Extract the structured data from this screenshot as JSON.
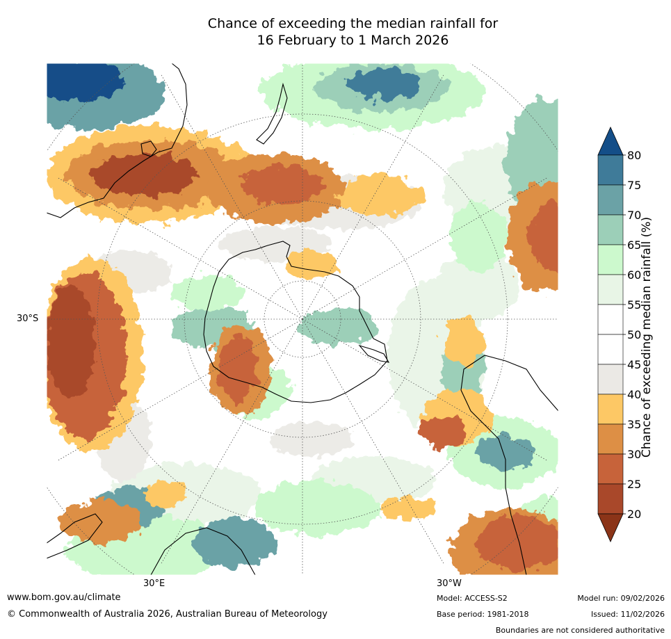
{
  "title": {
    "line1": "Chance of exceeding the median rainfall for",
    "line2": "16 February to 1 March 2026"
  },
  "map": {
    "projection": "south-polar-stereographic",
    "lat_label": "30°S",
    "lon_labels": {
      "east": "30°E",
      "west": "30°W"
    }
  },
  "legend": {
    "title": "Chance of exceeding median rainfall (%)",
    "ticks": [
      "20",
      "25",
      "30",
      "35",
      "40",
      "45",
      "50",
      "55",
      "60",
      "65",
      "70",
      "75",
      "80"
    ],
    "colors": {
      "under20": "#8b3418",
      "b20_25": "#a9482a",
      "b25_30": "#c7633a",
      "b30_35": "#dd8f45",
      "b35_40": "#fdc865",
      "b40_45": "#ebe9e5",
      "b45_50": "#ffffff",
      "b50_55": "#ffffff",
      "b55_60": "#e8f5e6",
      "b60_65": "#ccf9cd",
      "b65_70": "#9ccfb8",
      "b70_75": "#6ba2a6",
      "b75_80": "#3f7b99",
      "over80": "#144e88"
    }
  },
  "footer": {
    "url": "www.bom.gov.au/climate",
    "copyright": "© Commonwealth of Australia 2026, Australian Bureau of Meteorology",
    "model": "Model: ACCESS-S2",
    "base_period": "Base period: 1981-2018",
    "model_run": "Model run: 09/02/2026",
    "issued": "Issued: 11/02/2026",
    "disclaimer": "Boundaries are not considered authoritative"
  }
}
